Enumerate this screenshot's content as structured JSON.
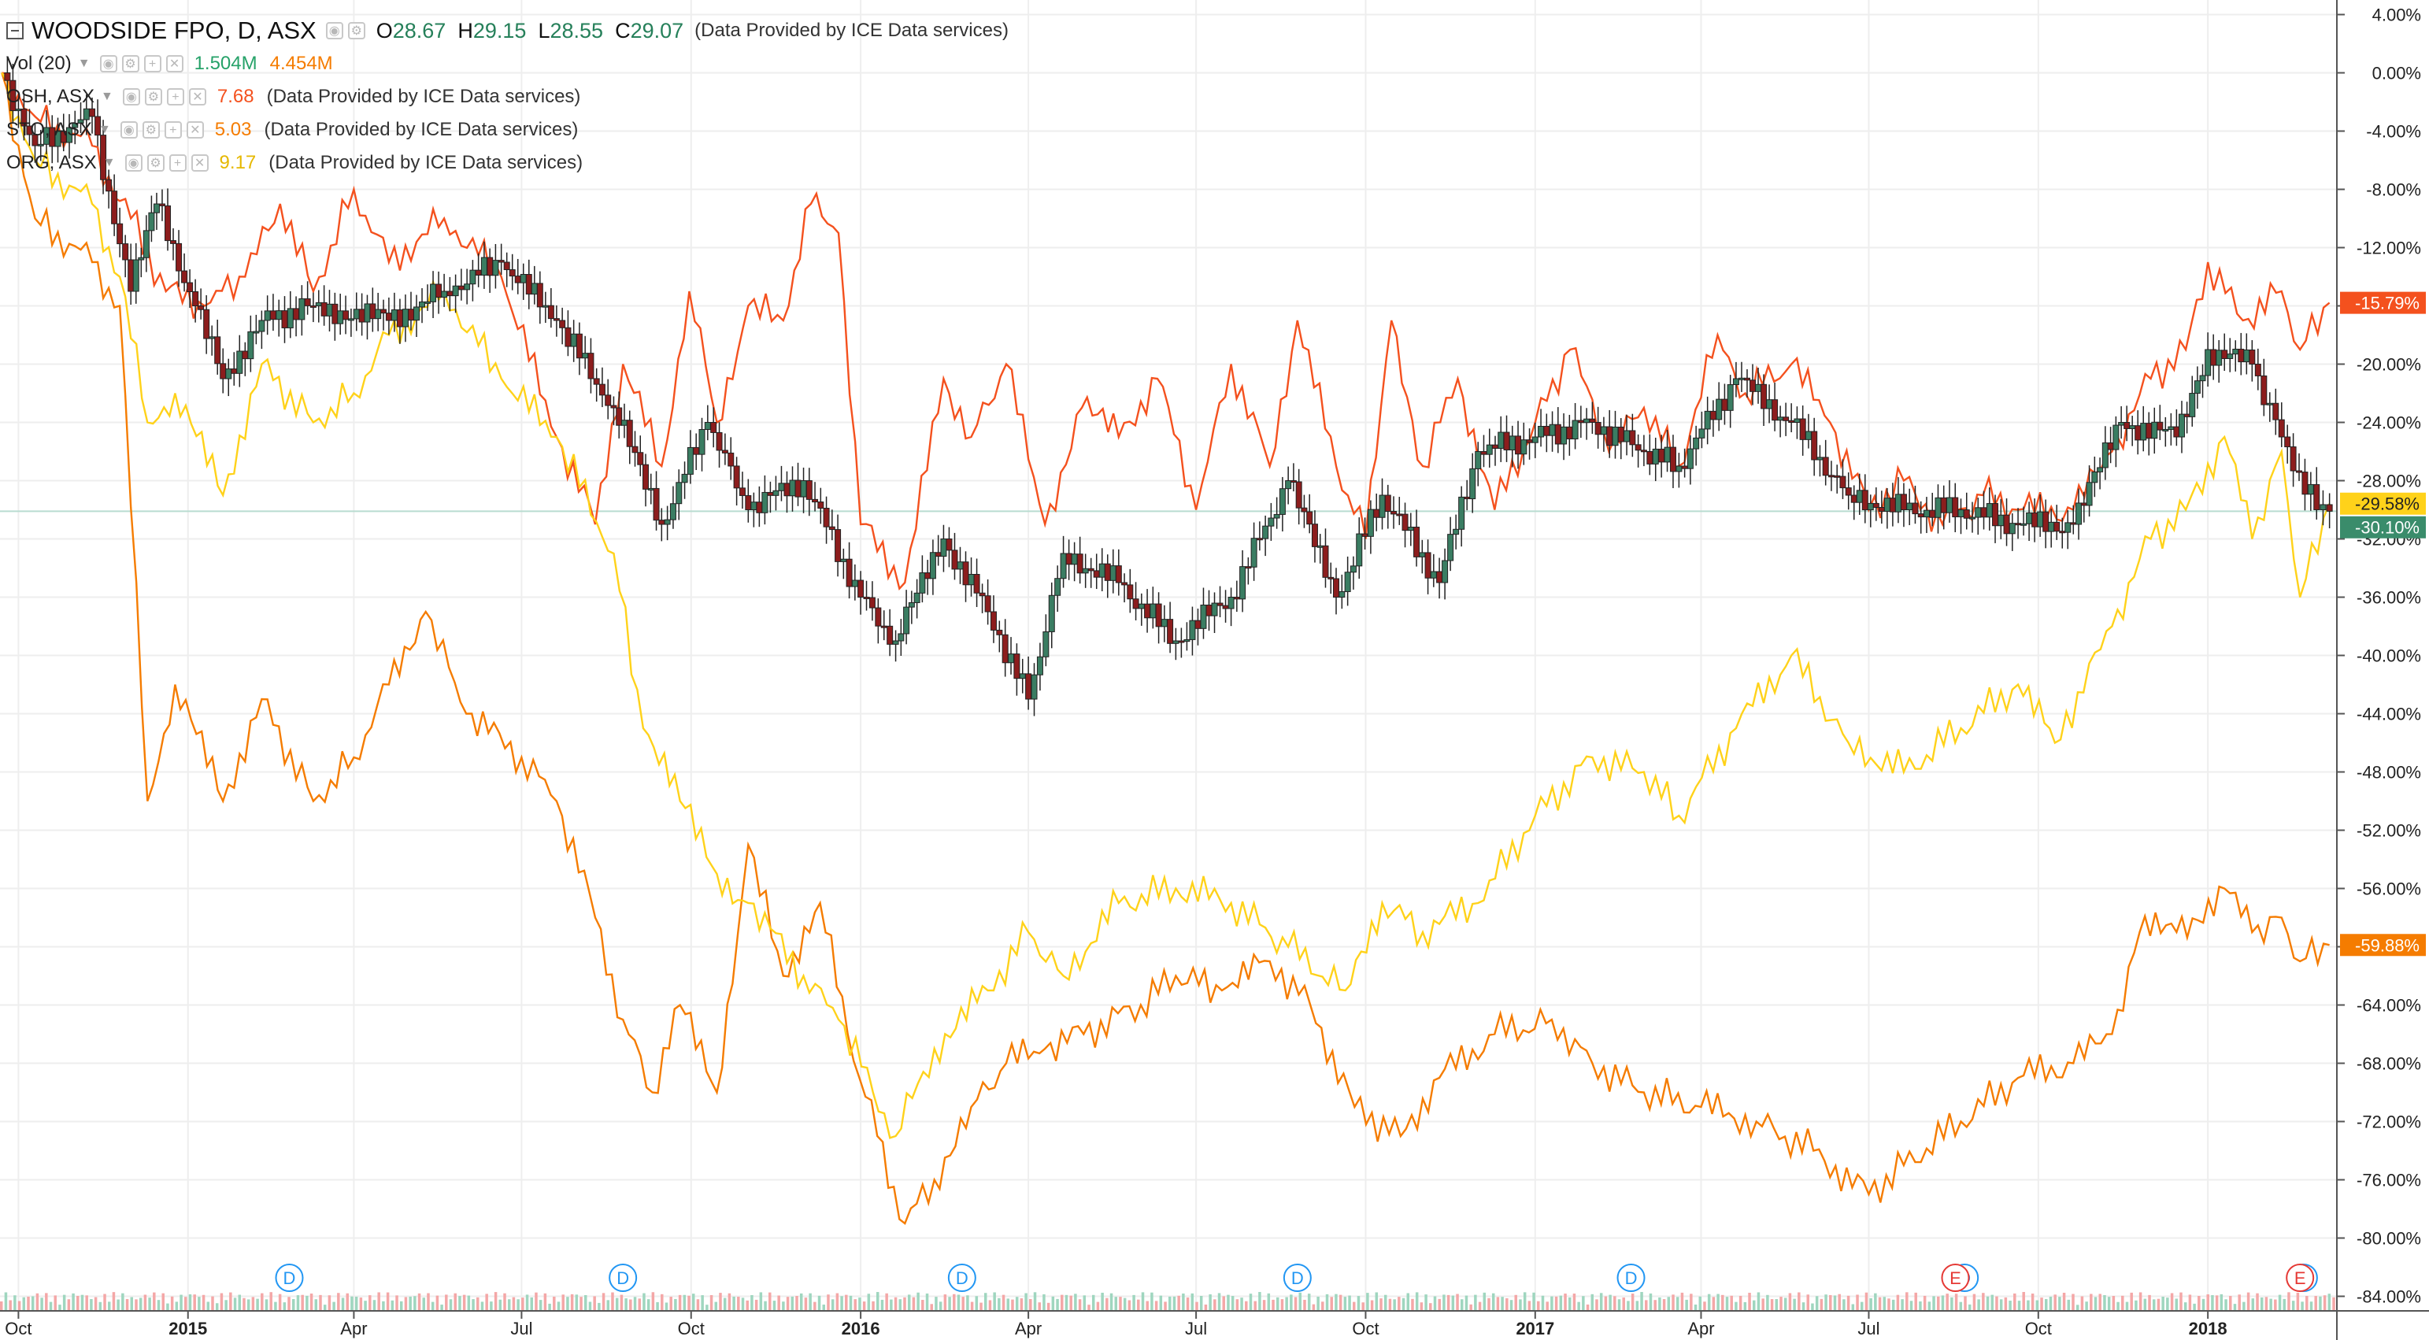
{
  "legend": {
    "main": {
      "symbol": "WOODSIDE FPO, D, ASX",
      "open_label": "O",
      "open": "28.67",
      "high_label": "H",
      "high": "29.15",
      "low_label": "L",
      "low": "28.55",
      "close_label": "C",
      "close": "29.07",
      "provider": "(Data Provided by ICE Data services)"
    },
    "volume": {
      "label": "Vol (20)",
      "value1": "1.504M",
      "value2": "4.454M"
    },
    "comparisons": [
      {
        "label": "OSH, ASX",
        "value": "7.68",
        "provider": "(Data Provided by ICE Data services)",
        "color": "#f4511e"
      },
      {
        "label": "STO, ASX",
        "value": "5.03",
        "provider": "(Data Provided by ICE Data services)",
        "color": "#f57c00"
      },
      {
        "label": "ORG, ASX",
        "value": "9.17",
        "provider": "(Data Provided by ICE Data services)",
        "color": "#f2c200"
      }
    ]
  },
  "colors": {
    "osh": "#f4511e",
    "sto": "#f57c00",
    "org": "#ffd21a",
    "candle_up": "#3a7d62",
    "candle_down": "#8c1d1d",
    "vol_up": "#9fd6bf",
    "vol_down": "#f4a7a7",
    "dividend": "#2196f3",
    "earnings": "#e53935",
    "grid": "#eeeeee"
  },
  "chart_data": {
    "type": "line",
    "ylabel_unit": "%",
    "ylim": [
      -85,
      5
    ],
    "y_ticks": [
      "4.00%",
      "0.00%",
      "-4.00%",
      "-8.00%",
      "-12.00%",
      "-16.00%",
      "-20.00%",
      "-24.00%",
      "-28.00%",
      "-32.00%",
      "-36.00%",
      "-40.00%",
      "-44.00%",
      "-48.00%",
      "-52.00%",
      "-56.00%",
      "-60.00%",
      "-64.00%",
      "-68.00%",
      "-72.00%",
      "-76.00%",
      "-80.00%",
      "-84.00%"
    ],
    "x_range": [
      "2014-09-21",
      "2018-03-12"
    ],
    "x_ticks": [
      {
        "date": "2014-10-01",
        "label": "Oct",
        "bold": false
      },
      {
        "date": "2015-01-01",
        "label": "2015",
        "bold": true
      },
      {
        "date": "2015-04-01",
        "label": "Apr",
        "bold": false
      },
      {
        "date": "2015-07-01",
        "label": "Jul",
        "bold": false
      },
      {
        "date": "2015-10-01",
        "label": "Oct",
        "bold": false
      },
      {
        "date": "2016-01-01",
        "label": "2016",
        "bold": true
      },
      {
        "date": "2016-04-01",
        "label": "Apr",
        "bold": false
      },
      {
        "date": "2016-07-01",
        "label": "Jul",
        "bold": false
      },
      {
        "date": "2016-10-01",
        "label": "Oct",
        "bold": false
      },
      {
        "date": "2017-01-01",
        "label": "2017",
        "bold": true
      },
      {
        "date": "2017-04-01",
        "label": "Apr",
        "bold": false
      },
      {
        "date": "2017-07-01",
        "label": "Jul",
        "bold": false
      },
      {
        "date": "2017-10-01",
        "label": "Oct",
        "bold": false
      },
      {
        "date": "2018-01-01",
        "label": "2018",
        "bold": true
      }
    ],
    "main_series": {
      "name": "WOODSIDE FPO, D, ASX",
      "style": "candles",
      "points": [
        [
          "2014-09-22",
          0
        ],
        [
          "2014-10-10",
          -5
        ],
        [
          "2014-11-10",
          -3
        ],
        [
          "2014-12-01",
          -15
        ],
        [
          "2014-12-15",
          -9
        ],
        [
          "2015-01-05",
          -16
        ],
        [
          "2015-01-20",
          -21
        ],
        [
          "2015-02-10",
          -17
        ],
        [
          "2015-03-10",
          -16
        ],
        [
          "2015-04-20",
          -17
        ],
        [
          "2015-05-20",
          -15
        ],
        [
          "2015-06-20",
          -13
        ],
        [
          "2015-07-20",
          -17
        ],
        [
          "2015-08-20",
          -23
        ],
        [
          "2015-09-15",
          -31
        ],
        [
          "2015-10-10",
          -24
        ],
        [
          "2015-11-01",
          -30
        ],
        [
          "2015-12-01",
          -28
        ],
        [
          "2016-01-01",
          -36
        ],
        [
          "2016-01-20",
          -39
        ],
        [
          "2016-02-15",
          -32
        ],
        [
          "2016-03-10",
          -37
        ],
        [
          "2016-04-01",
          -43
        ],
        [
          "2016-04-20",
          -33
        ],
        [
          "2016-05-20",
          -35
        ],
        [
          "2016-06-20",
          -39
        ],
        [
          "2016-07-20",
          -36
        ],
        [
          "2016-08-20",
          -28
        ],
        [
          "2016-09-15",
          -36
        ],
        [
          "2016-10-10",
          -29
        ],
        [
          "2016-11-10",
          -35
        ],
        [
          "2016-12-01",
          -26
        ],
        [
          "2017-01-01",
          -25
        ],
        [
          "2017-02-01",
          -24
        ],
        [
          "2017-03-01",
          -26
        ],
        [
          "2017-03-20",
          -27
        ],
        [
          "2017-04-20",
          -21
        ],
        [
          "2017-05-20",
          -24
        ],
        [
          "2017-06-20",
          -29
        ],
        [
          "2017-07-20",
          -30
        ],
        [
          "2017-08-20",
          -30
        ],
        [
          "2017-09-20",
          -31
        ],
        [
          "2017-10-20",
          -31
        ],
        [
          "2017-11-15",
          -24
        ],
        [
          "2017-12-15",
          -25
        ],
        [
          "2018-01-01",
          -19
        ],
        [
          "2018-01-25",
          -20
        ],
        [
          "2018-02-10",
          -25
        ],
        [
          "2018-03-01",
          -30
        ],
        [
          "2018-03-08",
          -30.1
        ]
      ],
      "last_label": "-30.10%"
    },
    "series": [
      {
        "name": "OSH, ASX",
        "color": "#f4511e",
        "last_label": "-15.79%",
        "points": [
          [
            "2014-09-22",
            0
          ],
          [
            "2014-10-10",
            -3
          ],
          [
            "2014-11-10",
            -5
          ],
          [
            "2014-12-01",
            -10
          ],
          [
            "2014-12-20",
            -15
          ],
          [
            "2015-01-10",
            -16
          ],
          [
            "2015-02-01",
            -14
          ],
          [
            "2015-02-20",
            -9
          ],
          [
            "2015-03-10",
            -15
          ],
          [
            "2015-04-01",
            -8
          ],
          [
            "2015-04-20",
            -13
          ],
          [
            "2015-05-20",
            -10
          ],
          [
            "2015-06-20",
            -14
          ],
          [
            "2015-07-20",
            -25
          ],
          [
            "2015-08-10",
            -31
          ],
          [
            "2015-08-25",
            -20
          ],
          [
            "2015-09-15",
            -27
          ],
          [
            "2015-09-30",
            -15
          ],
          [
            "2015-10-15",
            -24
          ],
          [
            "2015-11-01",
            -16
          ],
          [
            "2015-11-20",
            -17
          ],
          [
            "2015-12-05",
            -9
          ],
          [
            "2015-12-20",
            -11
          ],
          [
            "2016-01-01",
            -31
          ],
          [
            "2016-01-25",
            -35
          ],
          [
            "2016-02-15",
            -21
          ],
          [
            "2016-03-01",
            -25
          ],
          [
            "2016-03-20",
            -20
          ],
          [
            "2016-04-10",
            -31
          ],
          [
            "2016-04-30",
            -23
          ],
          [
            "2016-05-20",
            -25
          ],
          [
            "2016-06-10",
            -21
          ],
          [
            "2016-07-01",
            -30
          ],
          [
            "2016-07-20",
            -20
          ],
          [
            "2016-08-10",
            -27
          ],
          [
            "2016-08-25",
            -17
          ],
          [
            "2016-09-15",
            -27
          ],
          [
            "2016-10-01",
            -32
          ],
          [
            "2016-10-15",
            -17
          ],
          [
            "2016-11-01",
            -27
          ],
          [
            "2016-11-20",
            -21
          ],
          [
            "2016-12-10",
            -30
          ],
          [
            "2017-01-01",
            -24
          ],
          [
            "2017-01-20",
            -19
          ],
          [
            "2017-02-10",
            -26
          ],
          [
            "2017-03-01",
            -23
          ],
          [
            "2017-03-20",
            -27
          ],
          [
            "2017-04-10",
            -18
          ],
          [
            "2017-04-25",
            -22
          ],
          [
            "2017-05-20",
            -20
          ],
          [
            "2017-06-10",
            -24
          ],
          [
            "2017-07-01",
            -30
          ],
          [
            "2017-07-20",
            -28
          ],
          [
            "2017-08-10",
            -31
          ],
          [
            "2017-09-01",
            -29
          ],
          [
            "2017-09-20",
            -30
          ],
          [
            "2017-10-20",
            -30
          ],
          [
            "2017-11-10",
            -26
          ],
          [
            "2017-12-01",
            -21
          ],
          [
            "2017-12-20",
            -19
          ],
          [
            "2018-01-01",
            -13
          ],
          [
            "2018-01-20",
            -17
          ],
          [
            "2018-02-10",
            -15
          ],
          [
            "2018-02-20",
            -19
          ],
          [
            "2018-03-08",
            -15.79
          ]
        ]
      },
      {
        "name": "STO, ASX",
        "color": "#f57c00",
        "last_label": "-59.88%",
        "points": [
          [
            "2014-09-22",
            0
          ],
          [
            "2014-10-10",
            -10
          ],
          [
            "2014-11-10",
            -13
          ],
          [
            "2014-11-25",
            -16
          ],
          [
            "2014-12-10",
            -50
          ],
          [
            "2014-12-25",
            -42
          ],
          [
            "2015-01-20",
            -50
          ],
          [
            "2015-02-10",
            -43
          ],
          [
            "2015-03-10",
            -50
          ],
          [
            "2015-04-01",
            -47
          ],
          [
            "2015-04-20",
            -42
          ],
          [
            "2015-05-10",
            -37
          ],
          [
            "2015-06-01",
            -44
          ],
          [
            "2015-07-01",
            -47
          ],
          [
            "2015-07-20",
            -50
          ],
          [
            "2015-08-10",
            -58
          ],
          [
            "2015-08-25",
            -65
          ],
          [
            "2015-09-10",
            -70
          ],
          [
            "2015-09-25",
            -64
          ],
          [
            "2015-10-15",
            -70
          ],
          [
            "2015-11-01",
            -53
          ],
          [
            "2015-11-20",
            -62
          ],
          [
            "2015-12-10",
            -57
          ],
          [
            "2015-12-25",
            -66
          ],
          [
            "2016-01-10",
            -73
          ],
          [
            "2016-01-25",
            -79
          ],
          [
            "2016-02-10",
            -76
          ],
          [
            "2016-03-01",
            -71
          ],
          [
            "2016-03-20",
            -68
          ],
          [
            "2016-04-10",
            -67
          ],
          [
            "2016-05-01",
            -66
          ],
          [
            "2016-06-01",
            -64
          ],
          [
            "2016-06-20",
            -62
          ],
          [
            "2016-07-15",
            -63
          ],
          [
            "2016-08-10",
            -61
          ],
          [
            "2016-09-01",
            -64
          ],
          [
            "2016-09-25",
            -71
          ],
          [
            "2016-10-20",
            -73
          ],
          [
            "2016-11-10",
            -69
          ],
          [
            "2016-12-10",
            -66
          ],
          [
            "2017-01-10",
            -65
          ],
          [
            "2017-02-01",
            -68
          ],
          [
            "2017-03-01",
            -70
          ],
          [
            "2017-04-01",
            -71
          ],
          [
            "2017-05-01",
            -72
          ],
          [
            "2017-06-01",
            -74
          ],
          [
            "2017-07-01",
            -77
          ],
          [
            "2017-07-20",
            -75
          ],
          [
            "2017-08-20",
            -72
          ],
          [
            "2017-09-20",
            -69
          ],
          [
            "2017-10-20",
            -68
          ],
          [
            "2017-11-10",
            -66
          ],
          [
            "2017-11-25",
            -59
          ],
          [
            "2017-12-15",
            -59
          ],
          [
            "2018-01-10",
            -56
          ],
          [
            "2018-01-25",
            -59
          ],
          [
            "2018-02-10",
            -58
          ],
          [
            "2018-02-20",
            -61
          ],
          [
            "2018-03-08",
            -59.88
          ]
        ]
      },
      {
        "name": "ORG, ASX",
        "color": "#ffd21a",
        "last_label": "-29.58%",
        "points": [
          [
            "2014-09-22",
            0
          ],
          [
            "2014-10-10",
            -6
          ],
          [
            "2014-11-10",
            -9
          ],
          [
            "2014-11-25",
            -14
          ],
          [
            "2014-12-10",
            -24
          ],
          [
            "2014-12-25",
            -22
          ],
          [
            "2015-01-20",
            -29
          ],
          [
            "2015-02-10",
            -20
          ],
          [
            "2015-03-10",
            -24
          ],
          [
            "2015-04-01",
            -22
          ],
          [
            "2015-04-20",
            -18
          ],
          [
            "2015-05-20",
            -15
          ],
          [
            "2015-06-20",
            -21
          ],
          [
            "2015-07-20",
            -25
          ],
          [
            "2015-08-20",
            -33
          ],
          [
            "2015-09-05",
            -45
          ],
          [
            "2015-09-25",
            -50
          ],
          [
            "2015-10-15",
            -55
          ],
          [
            "2015-11-01",
            -57
          ],
          [
            "2015-12-01",
            -62
          ],
          [
            "2015-12-20",
            -65
          ],
          [
            "2016-01-20",
            -73
          ],
          [
            "2016-02-10",
            -67
          ],
          [
            "2016-03-10",
            -63
          ],
          [
            "2016-04-01",
            -59
          ],
          [
            "2016-04-20",
            -62
          ],
          [
            "2016-05-20",
            -57
          ],
          [
            "2016-06-20",
            -56
          ],
          [
            "2016-07-20",
            -57
          ],
          [
            "2016-08-20",
            -60
          ],
          [
            "2016-09-20",
            -63
          ],
          [
            "2016-10-10",
            -57
          ],
          [
            "2016-11-01",
            -59
          ],
          [
            "2016-12-01",
            -57
          ],
          [
            "2017-01-01",
            -51
          ],
          [
            "2017-02-01",
            -47
          ],
          [
            "2017-03-01",
            -48
          ],
          [
            "2017-03-20",
            -51
          ],
          [
            "2017-04-20",
            -45
          ],
          [
            "2017-05-20",
            -40
          ],
          [
            "2017-06-20",
            -46
          ],
          [
            "2017-07-20",
            -48
          ],
          [
            "2017-08-20",
            -45
          ],
          [
            "2017-09-20",
            -42
          ],
          [
            "2017-10-10",
            -46
          ],
          [
            "2017-11-10",
            -38
          ],
          [
            "2017-12-01",
            -32
          ],
          [
            "2017-12-20",
            -30
          ],
          [
            "2018-01-10",
            -25
          ],
          [
            "2018-01-25",
            -32
          ],
          [
            "2018-02-10",
            -26
          ],
          [
            "2018-02-20",
            -36
          ],
          [
            "2018-03-08",
            -29.58
          ]
        ]
      }
    ],
    "current_line_value": -30.1,
    "dividend_markers": [
      {
        "date": "2015-02-25",
        "label": "D"
      },
      {
        "date": "2015-08-25",
        "label": "D"
      },
      {
        "date": "2016-02-25",
        "label": "D"
      },
      {
        "date": "2016-08-25",
        "label": "D"
      },
      {
        "date": "2017-02-22",
        "label": "D"
      },
      {
        "date": "2017-08-22",
        "label": "D"
      },
      {
        "date": "2018-02-22",
        "label": "D"
      }
    ],
    "earnings_markers": [
      {
        "date": "2017-08-17",
        "label": "E"
      },
      {
        "date": "2018-02-20",
        "label": "E"
      }
    ]
  }
}
